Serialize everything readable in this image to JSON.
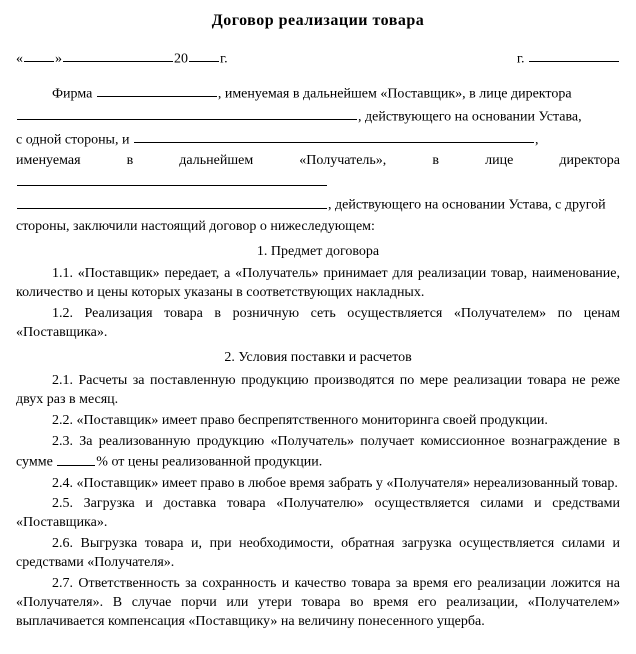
{
  "title": "Договор реализации товара",
  "header_left": {
    "open": "«",
    "close": "»",
    "year_prefix": "20",
    "year_suffix": "г."
  },
  "header_right": {
    "city_prefix": "г."
  },
  "preamble": {
    "t1a": "Фирма ",
    "t1b": ", именуемая в дальнейшем «Поставщик», в лице директора",
    "t2b": ", действующего на основании Устава,",
    "t3a": "с одной стороны, и ",
    "t3b": ",",
    "t4a": "именуемая в дальнейшем «Получатель», в лице директора ",
    "t5b": ", действующего на основании Устава, с другой",
    "t6": "стороны, заключили настоящий договор о нижеследующем:"
  },
  "section1": {
    "heading": "1. Предмет договора",
    "c11": "1.1. «Поставщик» передает, а «Получатель» принимает для реализации товар, наименование, количество и цены которых указаны в соответствующих накладных.",
    "c12": "1.2. Реализация товара в розничную сеть осуществляется «Получателем» по ценам «Поставщика»."
  },
  "section2": {
    "heading": "2. Условия поставки и расчетов",
    "c21": "2.1. Расчеты за поставленную продукцию производятся по мере реализации товара не реже двух раз в месяц.",
    "c22": "2.2. «Поставщик» имеет право беспрепятственного мониторинга своей продукции.",
    "c23a": "2.3. За реализованную продукцию «Получатель» получает комиссионное вознаграждение в сумме ",
    "c23b": "% от цены реализованной продукции.",
    "c24": "2.4. «Поставщик» имеет право в любое время забрать у «Получателя» нереализованный товар.",
    "c25": "2.5. Загрузка и доставка товара «Получателю» осуществляется силами и средствами «Поставщика».",
    "c26": "2.6. Выгрузка товара и, при необходимости, обратная загрузка осуществляется силами и средствами «Получателя».",
    "c27": "2.7. Ответственность за сохранность и качество товара за время его реализации ложится на «Получателя». В случае порчи или утери товара во время его реализации, «Получателем» выплачивается компенсация «Поставщику» на величину понесенного ущерба."
  }
}
